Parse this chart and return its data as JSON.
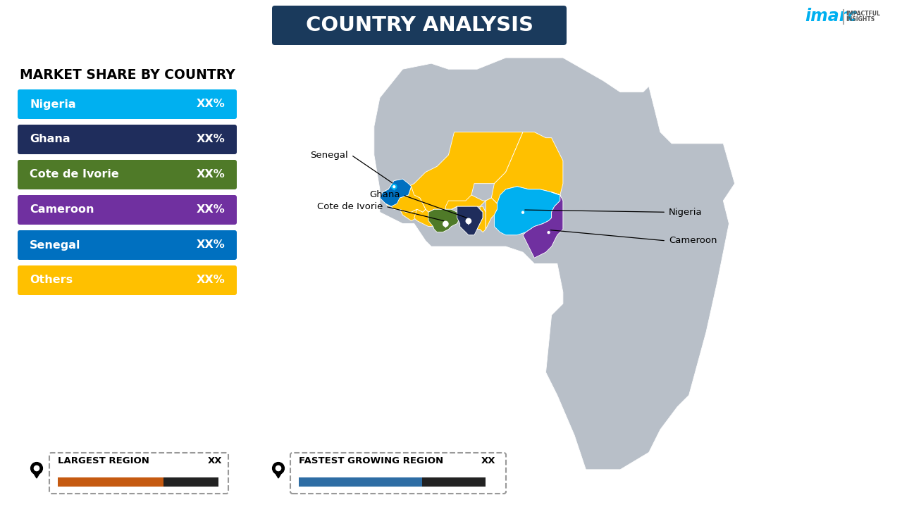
{
  "title": "COUNTRY ANALYSIS",
  "title_bg_color": "#1a3a5c",
  "title_text_color": "#ffffff",
  "background_color": "#ffffff",
  "legend_title": "MARKET SHARE BY COUNTRY",
  "legend_items": [
    {
      "label": "Nigeria",
      "value": "XX%",
      "color": "#00b0f0"
    },
    {
      "label": "Ghana",
      "value": "XX%",
      "color": "#1f2d5c"
    },
    {
      "label": "Cote de Ivorie",
      "value": "XX%",
      "color": "#4f7a28"
    },
    {
      "label": "Cameroon",
      "value": "XX%",
      "color": "#7030a0"
    },
    {
      "label": "Senegal",
      "value": "XX%",
      "color": "#0070c0"
    },
    {
      "label": "Others",
      "value": "XX%",
      "color": "#ffc000"
    }
  ],
  "largest_region_label": "LARGEST REGION",
  "largest_region_value": "XX",
  "largest_bar_color": "#c55a11",
  "fastest_region_label": "FASTEST GROWING REGION",
  "fastest_region_value": "XX",
  "fastest_bar_color": "#2e6da4",
  "imarc_text_color": "#00b0f0",
  "map_bg_color": "#b8bfc8",
  "africa_edge_color": "#ffffff",
  "nigeria_color": "#00b0f0",
  "ghana_color": "#1f2d5c",
  "cote_color": "#4f7a28",
  "cameroon_color": "#7030a0",
  "senegal_color": "#0070c0",
  "others_color": "#ffc000"
}
